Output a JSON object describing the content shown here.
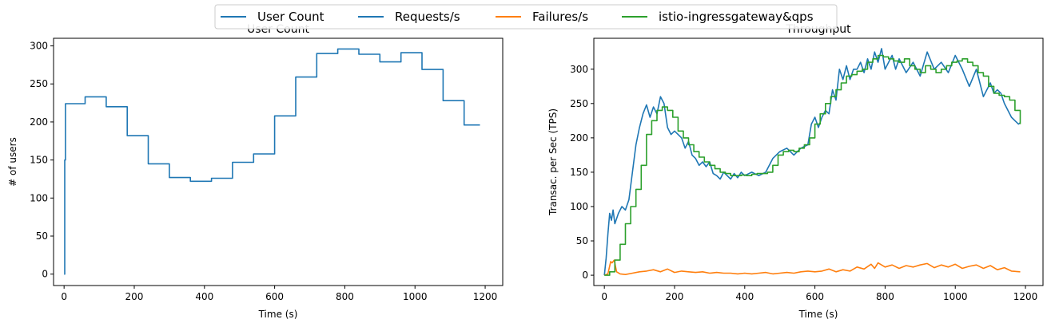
{
  "legend": [
    {
      "label": "User Count",
      "color": "#1f77b4"
    },
    {
      "label": "Requests/s",
      "color": "#1f77b4"
    },
    {
      "label": "Failures/s",
      "color": "#ff7f0e"
    },
    {
      "label": "istio-ingressgateway&qps",
      "color": "#2ca02c"
    }
  ],
  "chart_data": [
    {
      "type": "line",
      "title": "User Count",
      "xlabel": "Time (s)",
      "ylabel": "# of users",
      "xlim": [
        -30,
        1250
      ],
      "ylim": [
        -15,
        310
      ],
      "xticks": [
        0,
        200,
        400,
        600,
        800,
        1000,
        1200
      ],
      "yticks": [
        0,
        50,
        100,
        150,
        200,
        250,
        300
      ],
      "grid": false,
      "series": [
        {
          "name": "User Count",
          "color": "#1f77b4",
          "step": true,
          "x": [
            0,
            2,
            4,
            60,
            120,
            180,
            240,
            300,
            360,
            420,
            480,
            540,
            600,
            660,
            720,
            780,
            840,
            900,
            960,
            1020,
            1080,
            1140,
            1185
          ],
          "y": [
            0,
            150,
            224,
            233,
            220,
            182,
            145,
            127,
            122,
            126,
            147,
            158,
            208,
            259,
            290,
            296,
            289,
            279,
            291,
            269,
            228,
            196,
            196
          ]
        }
      ]
    },
    {
      "type": "line",
      "title": "Throughput",
      "xlabel": "Time (s)",
      "ylabel": "Transac. per Sec (TPS)",
      "xlim": [
        -30,
        1250
      ],
      "ylim": [
        -15,
        345
      ],
      "xticks": [
        0,
        200,
        400,
        600,
        800,
        1000,
        1200
      ],
      "yticks": [
        0,
        50,
        100,
        150,
        200,
        250,
        300
      ],
      "grid": false,
      "series": [
        {
          "name": "Requests/s",
          "color": "#1f77b4",
          "x": [
            0,
            5,
            10,
            15,
            20,
            25,
            30,
            40,
            50,
            60,
            70,
            80,
            90,
            100,
            110,
            120,
            130,
            140,
            150,
            160,
            170,
            180,
            190,
            200,
            210,
            220,
            230,
            240,
            250,
            260,
            270,
            280,
            290,
            300,
            310,
            320,
            330,
            340,
            350,
            360,
            370,
            380,
            390,
            400,
            420,
            440,
            460,
            480,
            500,
            520,
            540,
            560,
            580,
            590,
            600,
            610,
            620,
            630,
            640,
            650,
            660,
            670,
            680,
            690,
            700,
            710,
            720,
            730,
            740,
            750,
            760,
            770,
            780,
            790,
            800,
            810,
            820,
            830,
            840,
            860,
            880,
            900,
            920,
            940,
            960,
            980,
            1000,
            1020,
            1040,
            1060,
            1080,
            1100,
            1110,
            1120,
            1130,
            1140,
            1150,
            1160,
            1170,
            1180,
            1185
          ],
          "y": [
            0,
            25,
            60,
            90,
            80,
            95,
            75,
            90,
            100,
            95,
            110,
            150,
            190,
            215,
            235,
            248,
            230,
            245,
            235,
            260,
            250,
            215,
            205,
            210,
            205,
            200,
            185,
            195,
            175,
            170,
            160,
            165,
            158,
            165,
            148,
            145,
            140,
            150,
            145,
            140,
            148,
            142,
            150,
            145,
            150,
            145,
            150,
            170,
            180,
            185,
            175,
            185,
            190,
            220,
            230,
            215,
            230,
            240,
            235,
            270,
            255,
            300,
            285,
            305,
            285,
            300,
            300,
            310,
            295,
            315,
            300,
            325,
            310,
            330,
            300,
            310,
            320,
            300,
            315,
            295,
            310,
            290,
            325,
            300,
            310,
            295,
            320,
            300,
            275,
            300,
            260,
            280,
            265,
            270,
            265,
            250,
            240,
            230,
            225,
            220,
            222
          ]
        },
        {
          "name": "Failures/s",
          "color": "#ff7f0e",
          "x": [
            0,
            10,
            18,
            22,
            28,
            35,
            45,
            60,
            80,
            100,
            120,
            140,
            160,
            180,
            200,
            220,
            240,
            260,
            280,
            300,
            320,
            340,
            360,
            380,
            400,
            420,
            440,
            460,
            480,
            500,
            520,
            540,
            560,
            580,
            600,
            620,
            640,
            660,
            680,
            700,
            720,
            740,
            760,
            770,
            780,
            800,
            820,
            840,
            860,
            880,
            900,
            920,
            940,
            960,
            980,
            1000,
            1020,
            1040,
            1060,
            1080,
            1100,
            1120,
            1140,
            1160,
            1185
          ],
          "y": [
            0,
            2,
            20,
            18,
            22,
            5,
            2,
            1,
            3,
            5,
            6,
            8,
            5,
            9,
            4,
            6,
            5,
            4,
            5,
            3,
            4,
            3,
            3,
            2,
            3,
            2,
            3,
            4,
            2,
            3,
            4,
            3,
            5,
            6,
            5,
            6,
            9,
            5,
            8,
            6,
            12,
            9,
            16,
            10,
            18,
            12,
            15,
            10,
            14,
            12,
            15,
            17,
            11,
            15,
            12,
            16,
            10,
            13,
            15,
            10,
            14,
            8,
            11,
            6,
            5
          ]
        },
        {
          "name": "istio-ingressgateway&qps",
          "color": "#2ca02c",
          "step": true,
          "x": [
            0,
            15,
            30,
            45,
            60,
            75,
            90,
            105,
            120,
            135,
            150,
            165,
            180,
            195,
            210,
            225,
            240,
            255,
            270,
            285,
            300,
            315,
            330,
            345,
            360,
            375,
            390,
            405,
            420,
            435,
            450,
            465,
            480,
            495,
            510,
            525,
            540,
            555,
            570,
            585,
            600,
            615,
            630,
            645,
            660,
            675,
            690,
            705,
            720,
            735,
            750,
            765,
            780,
            795,
            810,
            825,
            840,
            855,
            870,
            885,
            900,
            915,
            930,
            945,
            960,
            975,
            990,
            1005,
            1020,
            1035,
            1050,
            1065,
            1080,
            1095,
            1110,
            1125,
            1140,
            1155,
            1170,
            1185
          ],
          "y": [
            0,
            5,
            22,
            45,
            75,
            100,
            125,
            160,
            205,
            225,
            240,
            245,
            240,
            230,
            210,
            200,
            190,
            180,
            172,
            165,
            160,
            155,
            150,
            148,
            145,
            145,
            146,
            145,
            147,
            148,
            148,
            150,
            160,
            175,
            180,
            182,
            180,
            185,
            190,
            200,
            220,
            235,
            250,
            260,
            270,
            280,
            290,
            292,
            297,
            300,
            310,
            315,
            320,
            318,
            315,
            312,
            310,
            315,
            305,
            300,
            295,
            305,
            300,
            295,
            300,
            305,
            310,
            312,
            315,
            310,
            305,
            295,
            290,
            275,
            265,
            262,
            260,
            255,
            240,
            220
          ]
        }
      ]
    }
  ]
}
